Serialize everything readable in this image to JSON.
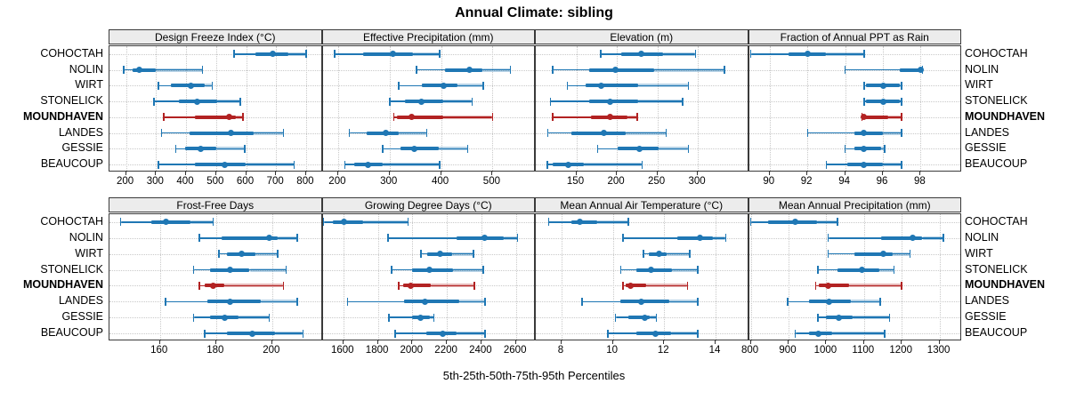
{
  "title": "Annual Climate: sibling",
  "x_axis_label": "5th-25th-50th-75th-95th Percentiles",
  "highlight_site": "MOUNDHAVEN",
  "colors": {
    "series_blue": "#1f77b4",
    "highlight_red": "#b22222",
    "grid": "#c9c9c9",
    "panel_border": "#3a3a3a",
    "header_bg": "#ececec"
  },
  "chart_data": {
    "type": "dotplot-percentiles",
    "title": "Annual Climate: sibling",
    "xlabel": "5th-25th-50th-75th-95th Percentiles",
    "legend_position": "none",
    "grid": "dotted",
    "percentile_order": [
      "p5",
      "p25",
      "p50",
      "p75",
      "p95"
    ],
    "sites": [
      "COHOCTAH",
      "NOLIN",
      "WIRT",
      "STONELICK",
      "MOUNDHAVEN",
      "LANDES",
      "GESSIE",
      "BEAUCOUP"
    ],
    "panels": [
      {
        "title": "Design Freeze Index (°C)",
        "grid_row": 0,
        "grid_col": 0,
        "xlim": [
          145,
          855
        ],
        "ticks": [
          200,
          300,
          400,
          500,
          600,
          700,
          800
        ],
        "series": [
          [
            560,
            630,
            690,
            740,
            800
          ],
          [
            193,
            222,
            245,
            300,
            455
          ],
          [
            308,
            350,
            415,
            462,
            487
          ],
          [
            293,
            376,
            438,
            504,
            580
          ],
          [
            325,
            430,
            545,
            565,
            590
          ],
          [
            318,
            412,
            550,
            625,
            725
          ],
          [
            365,
            398,
            448,
            500,
            595
          ],
          [
            308,
            430,
            530,
            600,
            760
          ]
        ]
      },
      {
        "title": "Effective Precipitation (mm)",
        "grid_row": 0,
        "grid_col": 1,
        "xlim": [
          170,
          584
        ],
        "ticks": [
          200,
          300,
          400,
          500
        ],
        "series": [
          [
            193,
            248,
            307,
            345,
            397
          ],
          [
            352,
            408,
            455,
            480,
            535
          ],
          [
            318,
            363,
            405,
            432,
            482
          ],
          [
            300,
            330,
            362,
            405,
            460
          ],
          [
            308,
            315,
            343,
            405,
            500
          ],
          [
            222,
            256,
            293,
            317,
            372
          ],
          [
            287,
            322,
            348,
            395,
            452
          ],
          [
            213,
            232,
            258,
            287,
            397
          ]
        ]
      },
      {
        "title": "Elevation (m)",
        "grid_row": 0,
        "grid_col": 2,
        "xlim": [
          100,
          363
        ],
        "ticks": [
          150,
          200,
          250,
          300
        ],
        "series": [
          [
            180,
            205,
            230,
            257,
            297
          ],
          [
            121,
            166,
            198,
            246,
            333
          ],
          [
            139,
            161,
            181,
            226,
            288
          ],
          [
            118,
            166,
            192,
            226,
            281
          ],
          [
            121,
            168,
            192,
            213,
            225
          ],
          [
            115,
            144,
            184,
            211,
            261
          ],
          [
            176,
            201,
            228,
            251,
            288
          ],
          [
            114,
            121,
            140,
            159,
            231
          ]
        ]
      },
      {
        "title": "Fraction of Annual PPT as Rain",
        "grid_row": 0,
        "grid_col": 3,
        "xlim": [
          88.9,
          100.2
        ],
        "ticks": [
          90,
          92,
          94,
          96,
          98
        ],
        "series": [
          [
            89,
            91,
            92,
            93,
            95
          ],
          [
            94,
            96.9,
            98,
            98,
            98.1
          ],
          [
            95,
            95.1,
            96,
            96.9,
            97
          ],
          [
            95,
            95.1,
            96,
            96.9,
            97
          ],
          [
            94.9,
            95,
            95,
            96.3,
            97
          ],
          [
            92,
            94.5,
            95,
            96,
            97
          ],
          [
            94,
            94.5,
            95,
            95.9,
            96.1
          ],
          [
            93,
            94.1,
            95,
            96,
            97
          ]
        ]
      },
      {
        "title": "Frost-Free Days",
        "grid_row": 1,
        "grid_col": 0,
        "xlim": [
          142,
          218
        ],
        "ticks": [
          160,
          180,
          200
        ],
        "series": [
          [
            146,
            157,
            162,
            171,
            179
          ],
          [
            174,
            182,
            199,
            202,
            209
          ],
          [
            181,
            184,
            189,
            194,
            202
          ],
          [
            172,
            178,
            185,
            192,
            205
          ],
          [
            174,
            176,
            179,
            183,
            204
          ],
          [
            162,
            177,
            185,
            196,
            209
          ],
          [
            172,
            178,
            183,
            188,
            199
          ],
          [
            176,
            184,
            193,
            201,
            211
          ]
        ]
      },
      {
        "title": "Growing Degree Days (°C)",
        "grid_row": 1,
        "grid_col": 1,
        "xlim": [
          1480,
          2715
        ],
        "ticks": [
          1600,
          1800,
          2000,
          2200,
          2400,
          2600
        ],
        "series": [
          [
            1485,
            1540,
            1605,
            1715,
            1975
          ],
          [
            1860,
            2255,
            2420,
            2530,
            2610
          ],
          [
            2050,
            2085,
            2160,
            2230,
            2355
          ],
          [
            1880,
            2000,
            2100,
            2235,
            2410
          ],
          [
            1920,
            1945,
            1990,
            2105,
            2360
          ],
          [
            1625,
            1950,
            2075,
            2270,
            2420
          ],
          [
            1865,
            2000,
            2045,
            2100,
            2125
          ],
          [
            1900,
            2080,
            2175,
            2255,
            2420
          ]
        ]
      },
      {
        "title": "Mean Annual Air Temperature (°C)",
        "grid_row": 1,
        "grid_col": 2,
        "xlim": [
          7.0,
          15.3
        ],
        "ticks": [
          8,
          10,
          12,
          14
        ],
        "series": [
          [
            7.5,
            8.4,
            8.7,
            9.4,
            10.6
          ],
          [
            10.4,
            12.5,
            13.4,
            13.9,
            14.4
          ],
          [
            11.2,
            11.4,
            11.8,
            12.1,
            13.0
          ],
          [
            10.3,
            10.9,
            11.5,
            12.3,
            13.3
          ],
          [
            10.4,
            10.5,
            10.7,
            11.3,
            12.9
          ],
          [
            8.8,
            10.3,
            11.1,
            12.2,
            13.3
          ],
          [
            10.1,
            10.6,
            11.25,
            11.45,
            11.7
          ],
          [
            9.8,
            10.9,
            11.65,
            12.25,
            13.3
          ]
        ]
      },
      {
        "title": "Mean Annual Precipitation (mm)",
        "grid_row": 1,
        "grid_col": 3,
        "xlim": [
          795,
          1360
        ],
        "ticks": [
          800,
          900,
          1000,
          1100,
          1200,
          1300
        ],
        "series": [
          [
            800,
            845,
            918,
            975,
            1030
          ],
          [
            1005,
            1145,
            1228,
            1255,
            1310
          ],
          [
            1005,
            1075,
            1150,
            1175,
            1222
          ],
          [
            978,
            1030,
            1095,
            1140,
            1180
          ],
          [
            972,
            980,
            1005,
            1060,
            1200
          ],
          [
            897,
            955,
            1008,
            1065,
            1143
          ],
          [
            978,
            1000,
            1032,
            1070,
            1168
          ],
          [
            918,
            955,
            980,
            1015,
            1155
          ]
        ]
      }
    ]
  }
}
